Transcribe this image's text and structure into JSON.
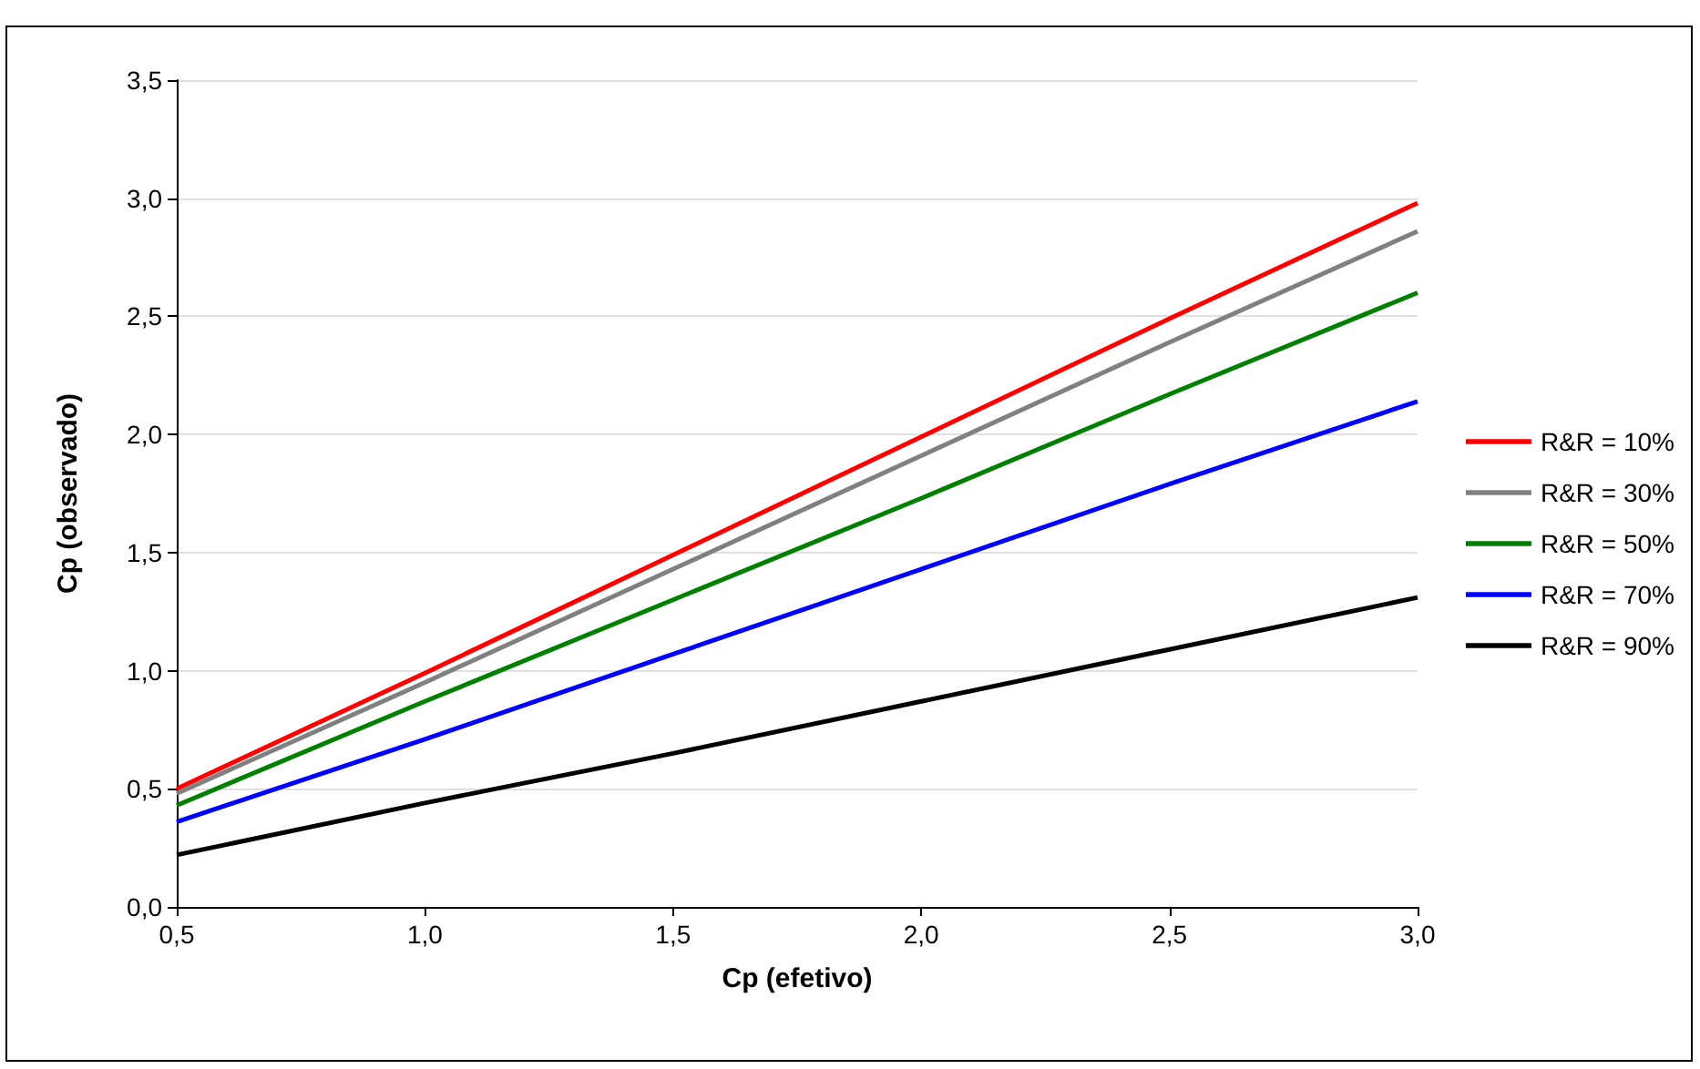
{
  "chart_data": {
    "type": "line",
    "xlabel": "Cp (efetivo)",
    "ylabel": "Cp (observado)",
    "x": [
      0.5,
      1.0,
      1.5,
      2.0,
      2.5,
      3.0
    ],
    "series": [
      {
        "name": "R&R = 10%",
        "color": "#ff0000",
        "values": [
          0.5,
          0.99,
          1.49,
          1.99,
          2.49,
          2.98
        ]
      },
      {
        "name": "R&R = 30%",
        "color": "#808080",
        "values": [
          0.48,
          0.95,
          1.43,
          1.91,
          2.39,
          2.86
        ]
      },
      {
        "name": "R&R = 50%",
        "color": "#008000",
        "values": [
          0.43,
          0.87,
          1.3,
          1.73,
          2.17,
          2.6
        ]
      },
      {
        "name": "R&R = 70%",
        "color": "#0000ff",
        "values": [
          0.36,
          0.71,
          1.07,
          1.43,
          1.79,
          2.14
        ]
      },
      {
        "name": "R&R = 90%",
        "color": "#000000",
        "values": [
          0.22,
          0.44,
          0.65,
          0.87,
          1.09,
          1.31
        ]
      }
    ],
    "xlim": [
      0.5,
      3.0
    ],
    "xticks": [
      {
        "value": 0.5,
        "label": "0,5"
      },
      {
        "value": 1.0,
        "label": "1,0"
      },
      {
        "value": 1.5,
        "label": "1,5"
      },
      {
        "value": 2.0,
        "label": "2,0"
      },
      {
        "value": 2.5,
        "label": "2,5"
      },
      {
        "value": 3.0,
        "label": "3,0"
      }
    ],
    "ylim": [
      0,
      3.5
    ],
    "yticks": [
      {
        "value": 0,
        "label": "0,0"
      },
      {
        "value": 0.5,
        "label": "0,5"
      },
      {
        "value": 1.0,
        "label": "1,0"
      },
      {
        "value": 1.5,
        "label": "1,5"
      },
      {
        "value": 2.0,
        "label": "2,0"
      },
      {
        "value": 2.5,
        "label": "2,5"
      },
      {
        "value": 3.0,
        "label": "3,0"
      },
      {
        "value": 3.5,
        "label": "3,5"
      }
    ],
    "grid": "y",
    "legend": "right",
    "marker": "none",
    "line_style": "solid"
  }
}
